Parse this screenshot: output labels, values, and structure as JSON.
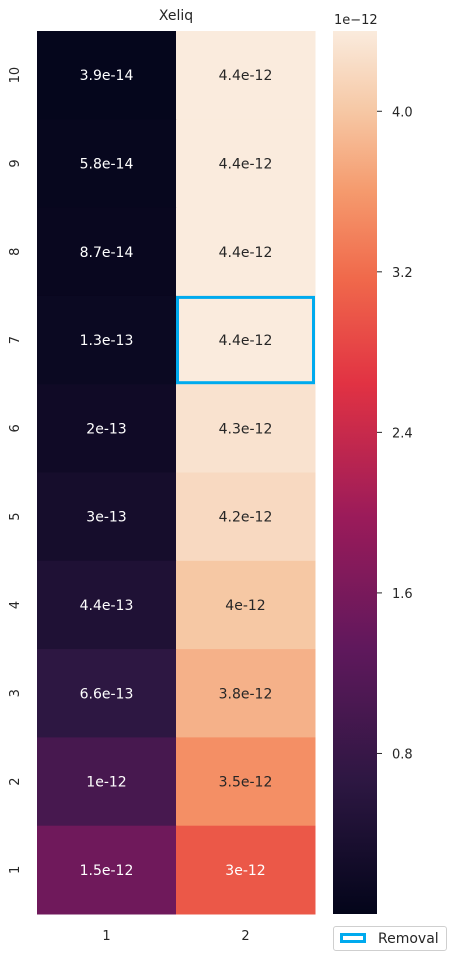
{
  "chart_data": {
    "type": "heatmap",
    "title": "Xeliq",
    "x_categories": [
      "1",
      "2"
    ],
    "y_categories": [
      "10",
      "9",
      "8",
      "7",
      "6",
      "5",
      "4",
      "3",
      "2",
      "1"
    ],
    "values": [
      [
        3.9e-14,
        4.4e-12
      ],
      [
        5.8e-14,
        4.4e-12
      ],
      [
        8.7e-14,
        4.4e-12
      ],
      [
        1.3e-13,
        4.4e-12
      ],
      [
        2e-13,
        4.3e-12
      ],
      [
        3e-13,
        4.2e-12
      ],
      [
        4.4e-13,
        4e-12
      ],
      [
        6.6e-13,
        3.8e-12
      ],
      [
        1e-12,
        3.5e-12
      ],
      [
        1.5e-12,
        3e-12
      ]
    ],
    "cell_labels": [
      [
        "3.9e-14",
        "4.4e-12"
      ],
      [
        "5.8e-14",
        "4.4e-12"
      ],
      [
        "8.7e-14",
        "4.4e-12"
      ],
      [
        "1.3e-13",
        "4.4e-12"
      ],
      [
        "2e-13",
        "4.3e-12"
      ],
      [
        "3e-13",
        "4.2e-12"
      ],
      [
        "4.4e-13",
        "4e-12"
      ],
      [
        "6.6e-13",
        "3.8e-12"
      ],
      [
        "1e-12",
        "3.5e-12"
      ],
      [
        "1.5e-12",
        "3e-12"
      ]
    ],
    "colormap": "rocket",
    "colorbar": {
      "range": [
        0,
        4.4
      ],
      "ticks": [
        0.8,
        1.6,
        2.4,
        3.2,
        4.0
      ],
      "tick_labels": [
        "0.8",
        "1.6",
        "2.4",
        "3.2",
        "4.0"
      ],
      "offset_label": "1e−12"
    },
    "highlight": {
      "row_label": "7",
      "column_label": "2",
      "color": "#00aaee",
      "legend_label": "Removal"
    },
    "legend_position": "below-colorbar",
    "grid": false
  }
}
